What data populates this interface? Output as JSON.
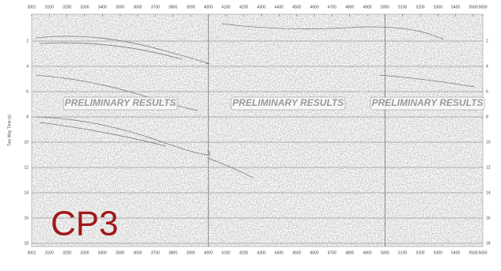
{
  "section": {
    "x_ticks": [
      "3001",
      "3100",
      "3200",
      "3300",
      "3400",
      "3500",
      "3600",
      "3700",
      "3800",
      "3900",
      "4000",
      "4100",
      "4200",
      "4300",
      "4400",
      "4500",
      "4600",
      "4700",
      "4800",
      "4900",
      "5000",
      "5100",
      "5200",
      "5300",
      "5400",
      "5500",
      "5650"
    ],
    "y_axis_label": "Two Way Time (s)",
    "y_ticks": [
      "2",
      "4",
      "6",
      "8",
      "10",
      "12",
      "14",
      "16",
      "18"
    ],
    "watermarks": [
      "PRELIMINARY RESULTS",
      "PRELIMINARY RESULTS",
      "PRELIMINARY RESULTS"
    ],
    "label": "CP3"
  }
}
